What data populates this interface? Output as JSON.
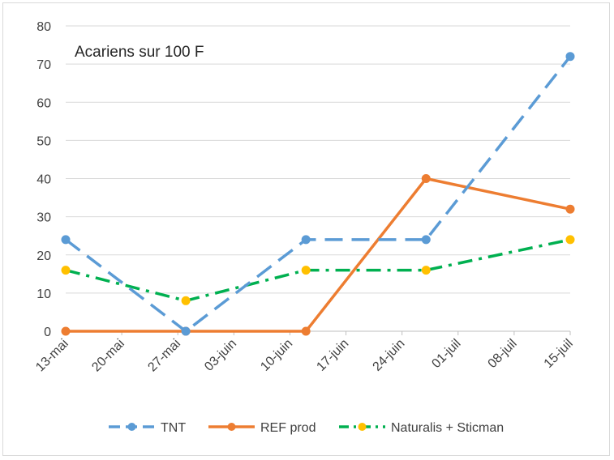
{
  "chart_data": {
    "type": "line",
    "title": "Acariens sur 100 F",
    "xlabel": "",
    "ylabel": "",
    "ylim": [
      0,
      80
    ],
    "yticks": [
      0,
      10,
      20,
      30,
      40,
      50,
      60,
      70,
      80
    ],
    "x_tick_labels": [
      "13-mai",
      "20-mai",
      "27-mai",
      "03-juin",
      "10-juin",
      "17-juin",
      "24-juin",
      "01-juil",
      "08-juil",
      "15-juil"
    ],
    "x_range": [
      "2020-05-13",
      "2020-07-15"
    ],
    "grid": "horizontal",
    "legend_position": "bottom",
    "series": [
      {
        "name": "TNT",
        "color": "#5B9BD5",
        "style": "dashed",
        "points": [
          {
            "x": "2020-05-13",
            "y": 24
          },
          {
            "x": "2020-05-28",
            "y": 0
          },
          {
            "x": "2020-06-12",
            "y": 24
          },
          {
            "x": "2020-06-27",
            "y": 24
          },
          {
            "x": "2020-07-15",
            "y": 72
          }
        ]
      },
      {
        "name": "REF prod",
        "color": "#ED7D31",
        "style": "solid",
        "points": [
          {
            "x": "2020-05-13",
            "y": 0
          },
          {
            "x": "2020-05-28",
            "y": 0
          },
          {
            "x": "2020-06-12",
            "y": 0
          },
          {
            "x": "2020-06-27",
            "y": 40
          },
          {
            "x": "2020-07-15",
            "y": 32
          }
        ]
      },
      {
        "name": "Naturalis + Sticman",
        "color": "#00B050",
        "marker_color": "#FFC000",
        "style": "dashdot",
        "points": [
          {
            "x": "2020-05-13",
            "y": 16
          },
          {
            "x": "2020-05-28",
            "y": 8
          },
          {
            "x": "2020-06-12",
            "y": 16
          },
          {
            "x": "2020-06-27",
            "y": 16
          },
          {
            "x": "2020-07-15",
            "y": 24
          }
        ]
      }
    ]
  }
}
